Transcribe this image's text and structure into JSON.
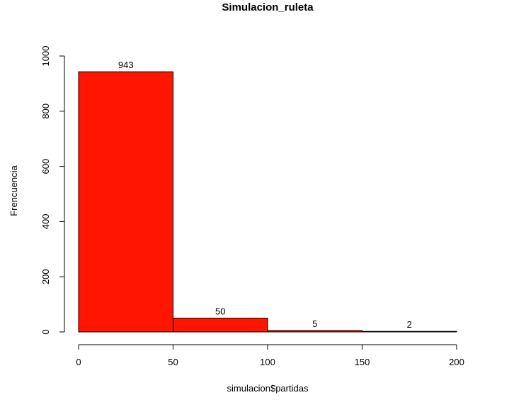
{
  "chart_data": {
    "type": "bar",
    "title": "Simulacion_ruleta",
    "xlabel": "simulacion$partidas",
    "ylabel": "Frencuencia",
    "bins": [
      {
        "start": 0,
        "end": 50,
        "value": 943,
        "label": "943"
      },
      {
        "start": 50,
        "end": 100,
        "value": 50,
        "label": "50"
      },
      {
        "start": 100,
        "end": 150,
        "value": 5,
        "label": "5"
      },
      {
        "start": 150,
        "end": 200,
        "value": 2,
        "label": "2"
      }
    ],
    "xlim": [
      0,
      200
    ],
    "ylim": [
      0,
      1000
    ],
    "xticks": [
      0,
      50,
      100,
      150,
      200
    ],
    "xtick_labels": [
      "0",
      "50",
      "100",
      "150",
      "200"
    ],
    "yticks": [
      0,
      200,
      400,
      600,
      800,
      1000
    ],
    "ytick_labels": [
      "0",
      "200",
      "400",
      "600",
      "800",
      "1000"
    ],
    "bar_color": "#ff1500",
    "grid": false,
    "legend": "none"
  }
}
